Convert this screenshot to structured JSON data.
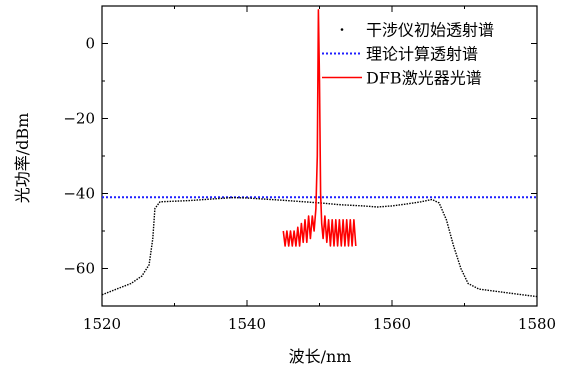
{
  "chart_data": {
    "type": "line",
    "xlabel": "波长/nm",
    "ylabel": "光功率/dBm",
    "xlim": [
      1520,
      1580
    ],
    "ylim": [
      -70,
      10
    ],
    "xticks": [
      1520,
      1540,
      1560,
      1580
    ],
    "yticks": [
      0,
      -20,
      -40,
      -60
    ],
    "legend_position": "top-right",
    "series": [
      {
        "name": "干涉仪初始透射谱",
        "style": "dotted-black",
        "color": "#000000",
        "x": [
          1520,
          1522,
          1524,
          1525.5,
          1526.5,
          1527,
          1527.3,
          1528,
          1532,
          1535,
          1538,
          1540,
          1545,
          1550,
          1553,
          1556,
          1558,
          1560,
          1562,
          1564,
          1565.5,
          1566.5,
          1567.5,
          1568.5,
          1569.5,
          1570.5,
          1572,
          1574,
          1576,
          1578,
          1580
        ],
        "y": [
          -67,
          -65.5,
          -64,
          -62,
          -59,
          -52,
          -44,
          -42.2,
          -41.9,
          -41.5,
          -41.1,
          -41.2,
          -41.8,
          -42.5,
          -43,
          -43.3,
          -43.6,
          -43.3,
          -42.8,
          -42.2,
          -41.6,
          -42.5,
          -47,
          -54,
          -60,
          -64,
          -65.5,
          -66,
          -66.5,
          -67,
          -67.5
        ]
      },
      {
        "name": "理论计算透射谱",
        "style": "dotted-blue",
        "color": "#1f1fff",
        "x": [
          1520,
          1580
        ],
        "y": [
          -41,
          -41
        ]
      },
      {
        "name": "DFB激光器光谱",
        "style": "solid-red",
        "color": "#ff0000",
        "x": [
          1545.0,
          1545.25,
          1545.5,
          1545.75,
          1546.0,
          1546.25,
          1546.5,
          1546.75,
          1547.0,
          1547.25,
          1547.5,
          1547.75,
          1548.0,
          1548.25,
          1548.5,
          1548.75,
          1549.0,
          1549.25,
          1549.5,
          1549.7,
          1549.85,
          1550.0,
          1550.15,
          1550.3,
          1550.5,
          1550.75,
          1551.0,
          1551.25,
          1551.5,
          1551.75,
          1552.0,
          1552.25,
          1552.5,
          1552.75,
          1553.0,
          1553.25,
          1553.5,
          1553.75,
          1554.0,
          1554.25,
          1554.5,
          1554.75,
          1555.0
        ],
        "y": [
          -50,
          -54,
          -50,
          -54,
          -50,
          -54,
          -50,
          -54,
          -49,
          -54,
          -48,
          -53,
          -47,
          -53,
          -46,
          -52,
          -46,
          -50,
          -44,
          -30,
          9,
          -10,
          -40,
          -48,
          -52,
          -46,
          -53,
          -47,
          -54,
          -47,
          -54,
          -47,
          -54,
          -47,
          -54,
          -47,
          -54,
          -47,
          -54,
          -47,
          -54,
          -47,
          -54
        ]
      }
    ]
  }
}
